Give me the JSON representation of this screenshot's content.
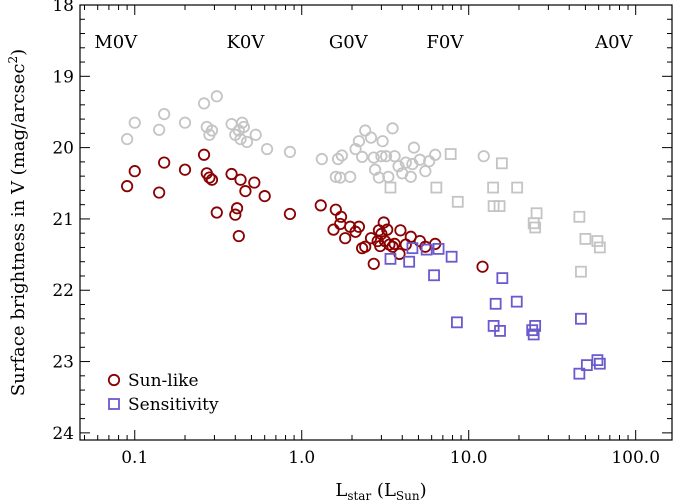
{
  "chart_data": {
    "type": "scatter",
    "xlabel": {
      "base": "L",
      "base_sub": "star",
      "unit_open": " (L",
      "unit_sub": "Sun",
      "unit_close": ")"
    },
    "ylabel": {
      "main": "Surface brightness in V (mag/arcsec",
      "sup": "2",
      "close": ")"
    },
    "x_scale": "log",
    "xlim": [
      0.047,
      165
    ],
    "ylim": [
      24.1,
      18.0
    ],
    "y_inverted": true,
    "x_ticks": [
      0.1,
      1.0,
      10.0,
      100.0
    ],
    "x_tick_labels": [
      "0.1",
      "1.0",
      "10.0",
      "100.0"
    ],
    "y_ticks": [
      18,
      19,
      20,
      21,
      22,
      23,
      24
    ],
    "y_tick_labels": [
      "18",
      "19",
      "20",
      "21",
      "22",
      "23",
      "24"
    ],
    "colors": {
      "sunlike": "#8b0000",
      "sensitivity": "#6a5acd",
      "background": "#c4c4c4"
    },
    "spectral_types": [
      {
        "label": "M0V",
        "x": 0.077
      },
      {
        "label": "K0V",
        "x": 0.46
      },
      {
        "label": "G0V",
        "x": 1.9
      },
      {
        "label": "F0V",
        "x": 7.2
      },
      {
        "label": "A0V",
        "x": 74
      }
    ],
    "legend": {
      "position": "bottom-left",
      "entries": [
        {
          "label": "Sun-like",
          "marker": "circle",
          "color": "#8b0000"
        },
        {
          "label": "Sensitivity",
          "marker": "square",
          "color": "#6a5acd"
        }
      ]
    },
    "series": [
      {
        "key": "sunlike_background",
        "marker": "circle",
        "color": "#c4c4c4",
        "points": [
          [
            0.09,
            19.88
          ],
          [
            0.1,
            19.65
          ],
          [
            0.14,
            19.75
          ],
          [
            0.15,
            19.53
          ],
          [
            0.2,
            19.65
          ],
          [
            0.26,
            19.38
          ],
          [
            0.27,
            19.71
          ],
          [
            0.28,
            19.82
          ],
          [
            0.29,
            19.76
          ],
          [
            0.31,
            19.28
          ],
          [
            0.38,
            19.67
          ],
          [
            0.4,
            19.82
          ],
          [
            0.42,
            19.76
          ],
          [
            0.43,
            19.88
          ],
          [
            0.44,
            19.65
          ],
          [
            0.45,
            19.71
          ],
          [
            0.47,
            19.92
          ],
          [
            0.53,
            19.82
          ],
          [
            0.62,
            20.02
          ],
          [
            0.85,
            20.06
          ],
          [
            1.32,
            20.16
          ],
          [
            1.6,
            20.41
          ],
          [
            1.65,
            20.16
          ],
          [
            1.7,
            20.42
          ],
          [
            1.74,
            20.11
          ],
          [
            1.95,
            20.41
          ],
          [
            2.1,
            20.02
          ],
          [
            2.2,
            19.91
          ],
          [
            2.3,
            20.13
          ],
          [
            2.4,
            19.76
          ],
          [
            2.6,
            19.86
          ],
          [
            2.7,
            20.14
          ],
          [
            2.75,
            20.31
          ],
          [
            2.9,
            20.42
          ],
          [
            3.0,
            20.12
          ],
          [
            3.05,
            19.91
          ],
          [
            3.2,
            20.12
          ],
          [
            3.3,
            20.41
          ],
          [
            3.5,
            19.73
          ],
          [
            3.6,
            20.12
          ],
          [
            3.8,
            20.26
          ],
          [
            4.0,
            20.36
          ],
          [
            4.2,
            20.21
          ],
          [
            4.5,
            20.41
          ],
          [
            4.6,
            20.23
          ],
          [
            4.7,
            20.0
          ],
          [
            5.1,
            20.17
          ],
          [
            5.5,
            20.33
          ],
          [
            5.8,
            20.19
          ],
          [
            6.3,
            20.1
          ],
          [
            12.3,
            20.12
          ]
        ]
      },
      {
        "key": "sensitivity_background",
        "marker": "square",
        "color": "#c4c4c4",
        "points": [
          [
            3.4,
            20.56
          ],
          [
            6.4,
            20.56
          ],
          [
            7.8,
            20.09
          ],
          [
            8.6,
            20.76
          ],
          [
            14.0,
            20.56
          ],
          [
            14.1,
            20.82
          ],
          [
            15.3,
            20.82
          ],
          [
            15.8,
            20.22
          ],
          [
            19.5,
            20.56
          ],
          [
            24.5,
            21.06
          ],
          [
            25.0,
            21.12
          ],
          [
            25.5,
            20.92
          ],
          [
            46.0,
            20.97
          ],
          [
            47.0,
            21.74
          ],
          [
            50.0,
            21.28
          ],
          [
            59.0,
            21.31
          ],
          [
            61.0,
            21.4
          ]
        ]
      },
      {
        "key": "sunlike",
        "name": "Sun-like",
        "marker": "circle",
        "color": "#8b0000",
        "points": [
          [
            0.09,
            20.54
          ],
          [
            0.1,
            20.33
          ],
          [
            0.14,
            20.63
          ],
          [
            0.15,
            20.21
          ],
          [
            0.2,
            20.31
          ],
          [
            0.26,
            20.1
          ],
          [
            0.27,
            20.36
          ],
          [
            0.28,
            20.42
          ],
          [
            0.29,
            20.45
          ],
          [
            0.31,
            20.91
          ],
          [
            0.38,
            20.37
          ],
          [
            0.4,
            20.94
          ],
          [
            0.41,
            20.85
          ],
          [
            0.42,
            21.24
          ],
          [
            0.43,
            20.45
          ],
          [
            0.46,
            20.61
          ],
          [
            0.52,
            20.49
          ],
          [
            0.6,
            20.68
          ],
          [
            0.85,
            20.93
          ],
          [
            1.3,
            20.81
          ],
          [
            1.55,
            21.15
          ],
          [
            1.6,
            20.87
          ],
          [
            1.7,
            21.07
          ],
          [
            1.72,
            20.97
          ],
          [
            1.82,
            21.27
          ],
          [
            1.95,
            21.11
          ],
          [
            2.1,
            21.18
          ],
          [
            2.2,
            21.11
          ],
          [
            2.3,
            21.41
          ],
          [
            2.4,
            21.39
          ],
          [
            2.6,
            21.27
          ],
          [
            2.7,
            21.63
          ],
          [
            2.85,
            21.31
          ],
          [
            2.9,
            21.16
          ],
          [
            2.95,
            21.38
          ],
          [
            3.0,
            21.21
          ],
          [
            3.1,
            21.05
          ],
          [
            3.15,
            21.31
          ],
          [
            3.25,
            21.15
          ],
          [
            3.35,
            21.36
          ],
          [
            3.5,
            21.39
          ],
          [
            3.6,
            21.35
          ],
          [
            3.85,
            21.49
          ],
          [
            3.9,
            21.16
          ],
          [
            4.2,
            21.36
          ],
          [
            4.5,
            21.25
          ],
          [
            5.1,
            21.31
          ],
          [
            5.5,
            21.39
          ],
          [
            6.3,
            21.35
          ],
          [
            12.1,
            21.67
          ]
        ]
      },
      {
        "key": "sensitivity",
        "name": "Sensitivity",
        "marker": "square",
        "color": "#6a5acd",
        "points": [
          [
            3.4,
            21.56
          ],
          [
            4.4,
            21.6
          ],
          [
            4.6,
            21.41
          ],
          [
            5.6,
            21.43
          ],
          [
            6.2,
            21.79
          ],
          [
            6.6,
            21.42
          ],
          [
            7.9,
            21.53
          ],
          [
            8.5,
            22.45
          ],
          [
            14.1,
            22.5
          ],
          [
            14.5,
            22.19
          ],
          [
            15.4,
            22.57
          ],
          [
            15.9,
            21.83
          ],
          [
            19.4,
            22.16
          ],
          [
            24.0,
            22.56
          ],
          [
            24.5,
            22.62
          ],
          [
            25.0,
            22.5
          ],
          [
            46.0,
            23.17
          ],
          [
            47.0,
            22.4
          ],
          [
            51.0,
            23.05
          ],
          [
            59.0,
            22.98
          ],
          [
            61.0,
            23.03
          ]
        ]
      }
    ]
  }
}
